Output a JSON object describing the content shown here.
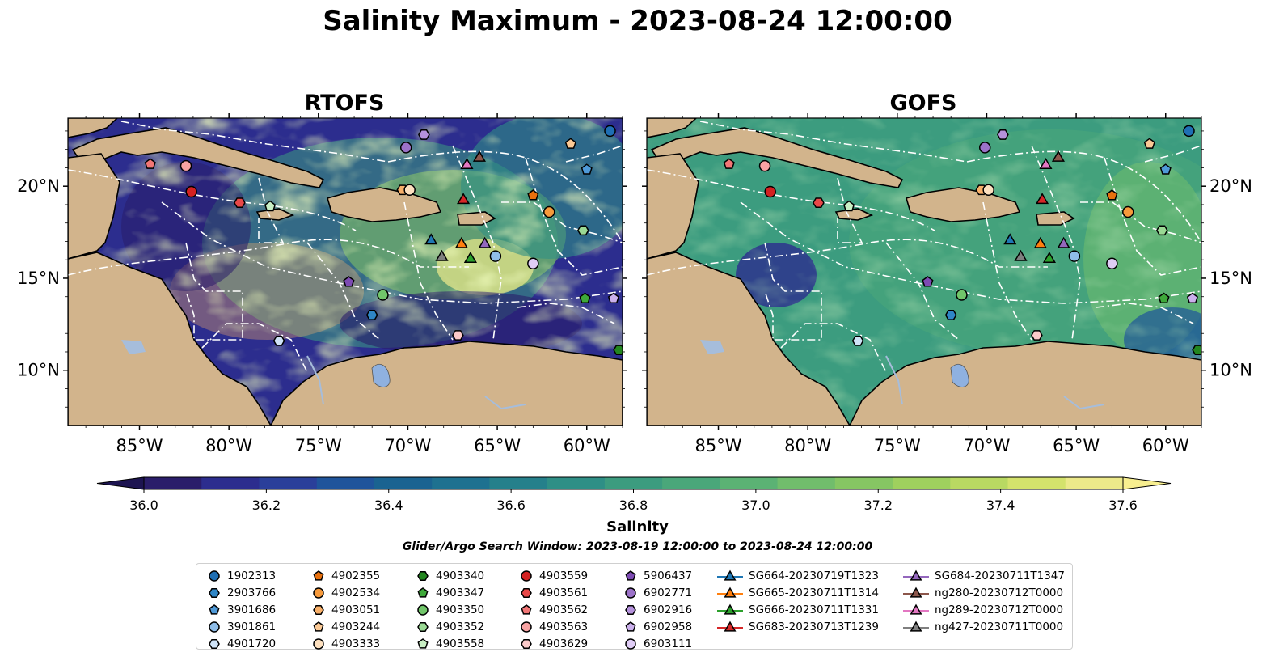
{
  "title": "Salinity Maximum - 2023-08-24 12:00:00",
  "panels": [
    {
      "title": "RTOFS",
      "id": "rtofs"
    },
    {
      "title": "GOFS",
      "id": "gofs"
    }
  ],
  "axes": {
    "lon_ticks": [
      "85°W",
      "80°W",
      "75°W",
      "70°W",
      "65°W",
      "60°W"
    ],
    "lon_values": [
      -85,
      -80,
      -75,
      -70,
      -65,
      -60
    ],
    "lat_ticks": [
      "20°N",
      "15°N",
      "10°N"
    ],
    "lat_values": [
      20,
      15,
      10
    ],
    "lon_range": [
      -89,
      -58
    ],
    "lat_range": [
      7,
      23.7
    ]
  },
  "colorbar": {
    "label": "Salinity",
    "ticks": [
      "36.0",
      "36.2",
      "36.4",
      "36.6",
      "36.8",
      "37.0",
      "37.2",
      "37.4",
      "37.6"
    ],
    "min": 36.0,
    "max": 37.6,
    "colors": [
      "#2a1d6a",
      "#2c2d8e",
      "#2a3f9a",
      "#1f549b",
      "#1a6391",
      "#1e7190",
      "#25808b",
      "#2e8f86",
      "#3c9c7f",
      "#4aa77a",
      "#5bb274",
      "#71bd6c",
      "#86c663",
      "#9fd05e",
      "#b9d962",
      "#d4e26c",
      "#ece98a"
    ],
    "extend": "both"
  },
  "search_window": "Glider/Argo Search Window: 2023-08-19 12:00:00 to 2023-08-24 12:00:00",
  "legend": [
    [
      {
        "label": "1902313",
        "marker": "circle",
        "color": "#1f6fb4"
      },
      {
        "label": "2903766",
        "marker": "hexagon",
        "color": "#2f86c6"
      },
      {
        "label": "3901686",
        "marker": "pentagon",
        "color": "#4f9ad8"
      },
      {
        "label": "3901861",
        "marker": "circle",
        "color": "#8fbde8"
      },
      {
        "label": "4901720",
        "marker": "hexagon",
        "color": "#cfe3f7"
      }
    ],
    [
      {
        "label": "4902355",
        "marker": "pentagon",
        "color": "#e8700d"
      },
      {
        "label": "4902534",
        "marker": "circle",
        "color": "#f79a3b"
      },
      {
        "label": "4903051",
        "marker": "hexagon",
        "color": "#f8b06a"
      },
      {
        "label": "4903244",
        "marker": "pentagon",
        "color": "#fbc995"
      },
      {
        "label": "4903333",
        "marker": "circle",
        "color": "#fde0bf"
      }
    ],
    [
      {
        "label": "4903340",
        "marker": "hexagon",
        "color": "#22861f"
      },
      {
        "label": "4903347",
        "marker": "pentagon",
        "color": "#3ea93a"
      },
      {
        "label": "4903350",
        "marker": "circle",
        "color": "#71c66a"
      },
      {
        "label": "4903352",
        "marker": "hexagon",
        "color": "#9ad994"
      },
      {
        "label": "4903558",
        "marker": "pentagon",
        "color": "#c9efc4"
      }
    ],
    [
      {
        "label": "4903559",
        "marker": "circle",
        "color": "#d42121"
      },
      {
        "label": "4903561",
        "marker": "hexagon",
        "color": "#e84848"
      },
      {
        "label": "4903562",
        "marker": "pentagon",
        "color": "#f27676"
      },
      {
        "label": "4903563",
        "marker": "circle",
        "color": "#f8a3a3"
      },
      {
        "label": "4903629",
        "marker": "hexagon",
        "color": "#fccaca"
      }
    ],
    [
      {
        "label": "5906437",
        "marker": "pentagon",
        "color": "#7d4bb3"
      },
      {
        "label": "6902771",
        "marker": "circle",
        "color": "#9c72c9"
      },
      {
        "label": "6902916",
        "marker": "hexagon",
        "color": "#b592dc"
      },
      {
        "label": "6902958",
        "marker": "pentagon",
        "color": "#cbb0ec"
      },
      {
        "label": "6903111",
        "marker": "circle",
        "color": "#e0cdf6"
      }
    ],
    [
      {
        "label": "SG664-20230719T1323",
        "marker": "triangle",
        "color": "#1f77b4"
      },
      {
        "label": "SG665-20230711T1314",
        "marker": "triangle",
        "color": "#ff7f0e"
      },
      {
        "label": "SG666-20230711T1331",
        "marker": "triangle",
        "color": "#2ca02c"
      },
      {
        "label": "SG683-20230713T1239",
        "marker": "triangle",
        "color": "#d62728"
      }
    ],
    [
      {
        "label": "SG684-20230711T1347",
        "marker": "triangle",
        "color": "#9467bd"
      },
      {
        "label": "ng280-20230712T0000",
        "marker": "triangle",
        "color": "#8c564b"
      },
      {
        "label": "ng289-20230712T0000",
        "marker": "triangle",
        "color": "#e377c2"
      },
      {
        "label": "ng427-20230711T0000",
        "marker": "triangle",
        "color": "#7f7f7f"
      }
    ]
  ],
  "observations": [
    {
      "id": "1902313",
      "lon": -58.7,
      "lat": 23.0
    },
    {
      "id": "2903766",
      "lon": -72.0,
      "lat": 13.0
    },
    {
      "id": "3901686",
      "lon": -60.0,
      "lat": 20.9
    },
    {
      "id": "3901861",
      "lon": -65.1,
      "lat": 16.2
    },
    {
      "id": "4901720",
      "lon": -77.2,
      "lat": 11.6
    },
    {
      "id": "4902355",
      "lon": -63.0,
      "lat": 19.5
    },
    {
      "id": "4902534",
      "lon": -62.1,
      "lat": 18.6
    },
    {
      "id": "4903051",
      "lon": -70.3,
      "lat": 19.8
    },
    {
      "id": "4903244",
      "lon": -60.9,
      "lat": 22.3
    },
    {
      "id": "4903333",
      "lon": -69.9,
      "lat": 19.8
    },
    {
      "id": "4903340",
      "lon": -58.2,
      "lat": 11.1
    },
    {
      "id": "4903347",
      "lon": -60.1,
      "lat": 13.9
    },
    {
      "id": "4903350",
      "lon": -71.4,
      "lat": 14.1
    },
    {
      "id": "4903352",
      "lon": -60.2,
      "lat": 17.6
    },
    {
      "id": "4903558",
      "lon": -77.7,
      "lat": 18.9
    },
    {
      "id": "4903559",
      "lon": -82.1,
      "lat": 19.7
    },
    {
      "id": "4903561",
      "lon": -79.4,
      "lat": 19.1
    },
    {
      "id": "4903562",
      "lon": -84.4,
      "lat": 21.2
    },
    {
      "id": "4903563",
      "lon": -82.4,
      "lat": 21.1
    },
    {
      "id": "4903629",
      "lon": -67.2,
      "lat": 11.9
    },
    {
      "id": "5906437",
      "lon": -73.3,
      "lat": 14.8
    },
    {
      "id": "6902771",
      "lon": -70.1,
      "lat": 22.1
    },
    {
      "id": "6902916",
      "lon": -69.1,
      "lat": 22.8
    },
    {
      "id": "6902958",
      "lon": -58.5,
      "lat": 13.9
    },
    {
      "id": "6903111",
      "lon": -63.0,
      "lat": 15.8
    },
    {
      "id": "SG664-20230719T1323",
      "lon": -68.7,
      "lat": 17.1
    },
    {
      "id": "SG665-20230711T1314",
      "lon": -67.0,
      "lat": 16.9
    },
    {
      "id": "SG666-20230711T1331",
      "lon": -66.5,
      "lat": 16.1
    },
    {
      "id": "SG683-20230713T1239",
      "lon": -66.9,
      "lat": 19.3
    },
    {
      "id": "SG684-20230711T1347",
      "lon": -65.7,
      "lat": 16.9
    },
    {
      "id": "ng280-20230712T0000",
      "lon": -66.0,
      "lat": 21.6
    },
    {
      "id": "ng289-20230712T0000",
      "lon": -66.7,
      "lat": 21.2
    },
    {
      "id": "ng427-20230711T0000",
      "lon": -68.1,
      "lat": 16.2
    }
  ]
}
